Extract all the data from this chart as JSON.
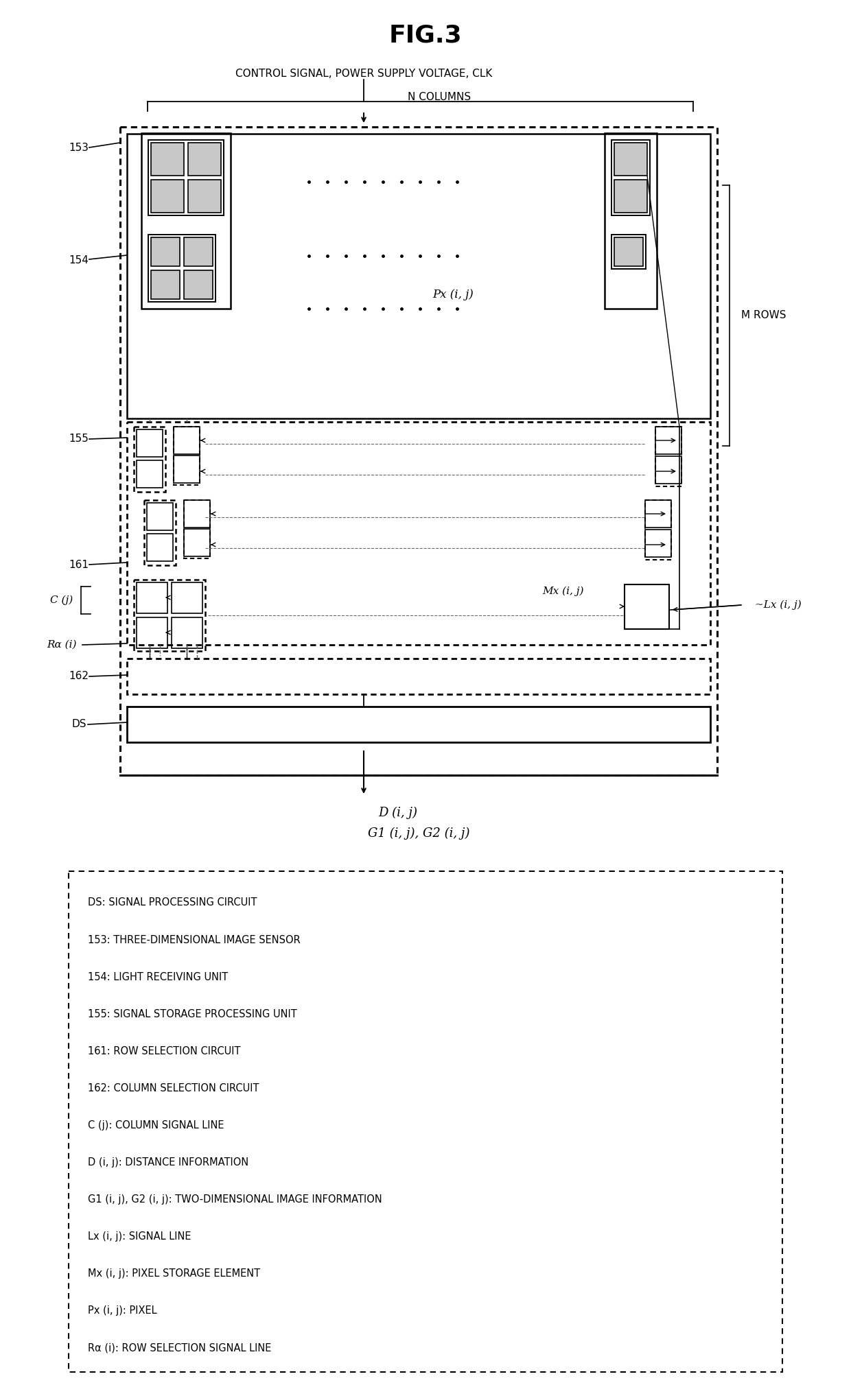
{
  "title": "FIG.3",
  "control_signal_text": "CONTROL SIGNAL, POWER SUPPLY VOLTAGE, CLK",
  "n_columns_text": "N COLUMNS",
  "m_rows_text": "M ROWS",
  "px_label": "Px (i, j)",
  "mx_label": "Mx (i, j)",
  "lx_label": "~Lx (i, j)",
  "d_label": "D (i, j)",
  "g_label": "G1 (i, j), G2 (i, j)",
  "legend_lines": [
    [
      "DS",
      ": SIGNAL PROCESSING CIRCUIT"
    ],
    [
      "153",
      ": THREE-DIMENSIONAL IMAGE SENSOR"
    ],
    [
      "154",
      ": LIGHT RECEIVING UNIT"
    ],
    [
      "155",
      ": SIGNAL STORAGE PROCESSING UNIT"
    ],
    [
      "161",
      ": ROW SELECTION CIRCUIT"
    ],
    [
      "162",
      ": COLUMN SELECTION CIRCUIT"
    ],
    [
      "C (j)",
      ": COLUMN SIGNAL LINE"
    ],
    [
      "D (i, j)",
      ": DISTANCE INFORMATION"
    ],
    [
      "G1 (i, j), G2 (i, j)",
      ": TWO-DIMENSIONAL IMAGE INFORMATION"
    ],
    [
      "Lx (i, j)",
      ": SIGNAL LINE"
    ],
    [
      "Mx (i, j)",
      ": PIXEL STORAGE ELEMENT"
    ],
    [
      "Px (i, j)",
      ": PIXEL"
    ],
    [
      "Rα (i)",
      ": ROW SELECTION SIGNAL LINE"
    ]
  ],
  "bg_color": "#ffffff",
  "box_color": "#000000",
  "shaded_color": "#c8c8c8",
  "dashed_color": "#666666"
}
